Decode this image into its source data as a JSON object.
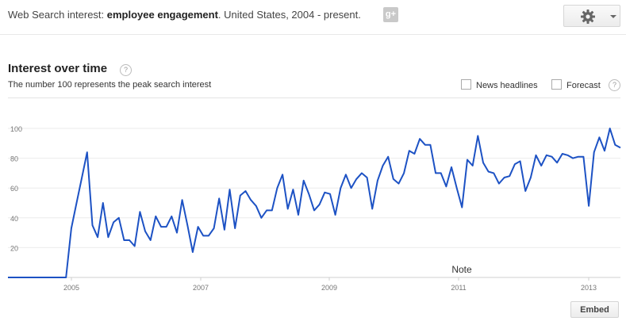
{
  "header": {
    "prefix": "Web Search interest: ",
    "term": "employee engagement",
    "suffix": ". United States, 2004 - present.",
    "gplus_icon": "g+",
    "settings_icon": "gear-icon"
  },
  "section": {
    "title": "Interest over time",
    "help_glyph": "?",
    "subtitle": "The number 100 represents the peak search interest"
  },
  "options": {
    "news_headlines": "News headlines",
    "forecast": "Forecast",
    "help_glyph": "?"
  },
  "chart_data": {
    "type": "line",
    "line_color": "#1d52c4",
    "grid": true,
    "ylim": [
      0,
      100
    ],
    "y_ticks": [
      "100",
      "80",
      "60",
      "40",
      "20"
    ],
    "x_ticks": [
      "2005",
      "2007",
      "2009",
      "2011",
      "2013"
    ],
    "annotation": "Note",
    "series": [
      {
        "values": [
          0,
          0,
          0,
          0,
          0,
          0,
          0,
          0,
          0,
          0,
          0,
          0,
          33,
          50,
          67,
          84,
          35,
          27,
          50,
          27,
          37,
          40,
          25,
          25,
          21,
          44,
          31,
          25,
          41,
          34,
          34,
          41,
          30,
          52,
          35,
          17,
          34,
          28,
          28,
          33,
          53,
          32,
          59,
          33,
          55,
          58,
          52,
          48,
          40,
          45,
          45,
          60,
          69,
          46,
          59,
          42,
          65,
          56,
          45,
          49,
          57,
          56,
          42,
          60,
          69,
          60,
          66,
          70,
          67,
          46,
          65,
          75,
          81,
          66,
          63,
          70,
          85,
          83,
          93,
          89,
          89,
          70,
          70,
          61,
          74,
          60,
          47,
          79,
          75,
          95,
          77,
          71,
          70,
          63,
          67,
          68,
          76,
          78,
          58,
          67,
          82,
          75,
          82,
          81,
          77,
          83,
          82,
          80,
          81,
          81,
          48,
          84,
          94,
          85,
          100,
          89,
          87
        ]
      }
    ]
  },
  "footer": {
    "embed_label": "Embed"
  }
}
